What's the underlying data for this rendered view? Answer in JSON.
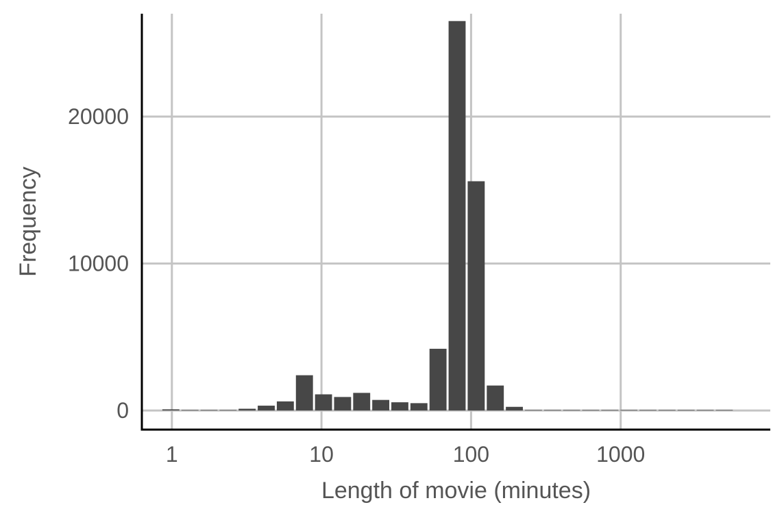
{
  "chart_data": {
    "type": "bar",
    "xlabel": "Length of movie (minutes)",
    "ylabel": "Frequency",
    "x_scale": "log10",
    "xlim": [
      0.63,
      10000
    ],
    "ylim": [
      -1300,
      27000
    ],
    "x_ticks": [
      1,
      10,
      100,
      1000
    ],
    "x_tick_labels": [
      "1",
      "10",
      "100",
      "1000"
    ],
    "y_ticks": [
      0,
      10000,
      20000
    ],
    "y_tick_labels": [
      "0",
      "10000",
      "20000"
    ],
    "grid": true,
    "bar_color": "#474747",
    "bins": [
      {
        "start": 0.85,
        "end": 1.14,
        "count": 80
      },
      {
        "start": 1.14,
        "end": 1.53,
        "count": 30
      },
      {
        "start": 1.53,
        "end": 2.05,
        "count": 10
      },
      {
        "start": 2.05,
        "end": 2.75,
        "count": 20
      },
      {
        "start": 2.75,
        "end": 3.69,
        "count": 120
      },
      {
        "start": 3.69,
        "end": 4.95,
        "count": 330
      },
      {
        "start": 4.95,
        "end": 6.64,
        "count": 620
      },
      {
        "start": 6.64,
        "end": 8.91,
        "count": 2400
      },
      {
        "start": 8.91,
        "end": 11.95,
        "count": 1100
      },
      {
        "start": 11.95,
        "end": 16.03,
        "count": 920
      },
      {
        "start": 16.03,
        "end": 21.5,
        "count": 1200
      },
      {
        "start": 21.5,
        "end": 28.84,
        "count": 720
      },
      {
        "start": 28.84,
        "end": 38.69,
        "count": 560
      },
      {
        "start": 38.69,
        "end": 51.9,
        "count": 500
      },
      {
        "start": 51.9,
        "end": 69.62,
        "count": 4200
      },
      {
        "start": 69.62,
        "end": 93.39,
        "count": 26500
      },
      {
        "start": 93.39,
        "end": 125.3,
        "count": 15600
      },
      {
        "start": 125.3,
        "end": 168.1,
        "count": 1700
      },
      {
        "start": 168.1,
        "end": 225.4,
        "count": 250
      },
      {
        "start": 225.4,
        "end": 302.4,
        "count": 30
      },
      {
        "start": 302.4,
        "end": 405.6,
        "count": 15
      },
      {
        "start": 405.6,
        "end": 544.1,
        "count": 8
      },
      {
        "start": 544.1,
        "end": 729.9,
        "count": 5
      },
      {
        "start": 729.9,
        "end": 979.1,
        "count": 4
      },
      {
        "start": 979.1,
        "end": 1313.4,
        "count": 3
      },
      {
        "start": 1313.4,
        "end": 1761.9,
        "count": 2
      },
      {
        "start": 1761.9,
        "end": 2363.5,
        "count": 2
      },
      {
        "start": 2363.5,
        "end": 3170.5,
        "count": 1
      },
      {
        "start": 3170.5,
        "end": 4253.1,
        "count": 1
      },
      {
        "start": 4253.1,
        "end": 5705.4,
        "count": 1
      }
    ]
  }
}
